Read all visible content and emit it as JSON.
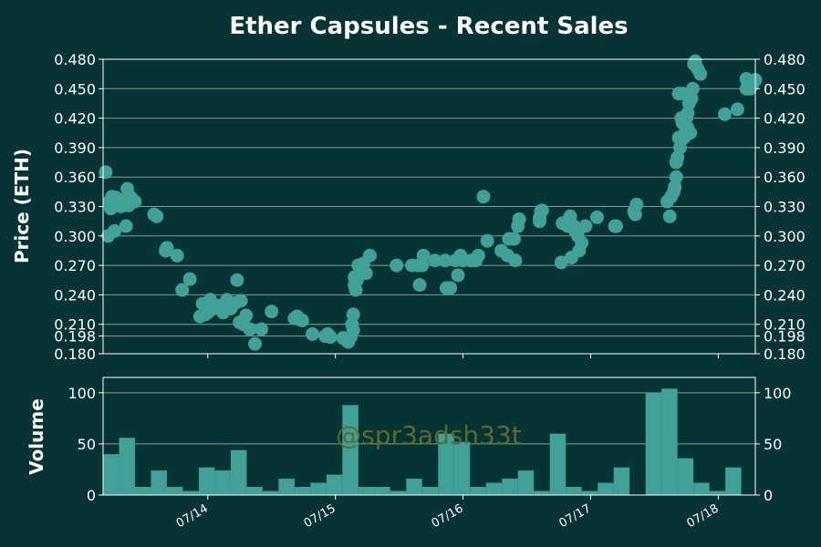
{
  "title": "Ether Capsules - Recent Sales",
  "watermark": "@spr3adsh33t",
  "colors": {
    "background": "#063333",
    "marker": "#41a097",
    "text": "#ffffff",
    "grid": "#8a9a98",
    "watermark": "#5b6b2d"
  },
  "chart_data": [
    {
      "type": "scatter",
      "ylabel": "Price (ETH)",
      "ylim": [
        0.18,
        0.48
      ],
      "yticks": [
        0.18,
        0.198,
        0.21,
        0.24,
        0.27,
        0.3,
        0.33,
        0.36,
        0.39,
        0.42,
        0.45,
        0.48
      ],
      "ytick_labels": [
        "0.180",
        "0.198",
        "0.210",
        "0.240",
        "0.270",
        "0.300",
        "0.330",
        "0.360",
        "0.390",
        "0.420",
        "0.450",
        "0.480"
      ],
      "grid": true,
      "x_unit": "days from 07/14 00:00",
      "xlim": [
        -0.82,
        4.29
      ],
      "points": [
        [
          -0.8,
          0.365
        ],
        [
          -0.78,
          0.3
        ],
        [
          -0.77,
          0.335
        ],
        [
          -0.76,
          0.328
        ],
        [
          -0.75,
          0.34
        ],
        [
          -0.73,
          0.305
        ],
        [
          -0.72,
          0.339
        ],
        [
          -0.7,
          0.336
        ],
        [
          -0.68,
          0.33
        ],
        [
          -0.66,
          0.337
        ],
        [
          -0.64,
          0.31
        ],
        [
          -0.63,
          0.348
        ],
        [
          -0.62,
          0.331
        ],
        [
          -0.6,
          0.339
        ],
        [
          -0.57,
          0.335
        ],
        [
          -0.42,
          0.322
        ],
        [
          -0.4,
          0.32
        ],
        [
          -0.33,
          0.285
        ],
        [
          -0.32,
          0.288
        ],
        [
          -0.24,
          0.28
        ],
        [
          -0.2,
          0.245
        ],
        [
          -0.14,
          0.256
        ],
        [
          -0.06,
          0.218
        ],
        [
          -0.04,
          0.231
        ],
        [
          -0.02,
          0.22
        ],
        [
          0.0,
          0.222
        ],
        [
          0.02,
          0.235
        ],
        [
          0.03,
          0.225
        ],
        [
          0.08,
          0.229
        ],
        [
          0.12,
          0.222
        ],
        [
          0.14,
          0.228
        ],
        [
          0.15,
          0.235
        ],
        [
          0.18,
          0.226
        ],
        [
          0.22,
          0.232
        ],
        [
          0.23,
          0.255
        ],
        [
          0.25,
          0.212
        ],
        [
          0.26,
          0.234
        ],
        [
          0.28,
          0.21
        ],
        [
          0.3,
          0.219
        ],
        [
          0.33,
          0.205
        ],
        [
          0.37,
          0.19
        ],
        [
          0.42,
          0.205
        ],
        [
          0.5,
          0.223
        ],
        [
          0.68,
          0.216
        ],
        [
          0.7,
          0.218
        ],
        [
          0.72,
          0.215
        ],
        [
          0.74,
          0.214
        ],
        [
          0.82,
          0.2
        ],
        [
          0.92,
          0.198
        ],
        [
          0.94,
          0.2
        ],
        [
          0.96,
          0.197
        ],
        [
          1.06,
          0.196
        ],
        [
          1.08,
          0.195
        ],
        [
          1.1,
          0.192
        ],
        [
          1.12,
          0.197
        ],
        [
          1.13,
          0.21
        ],
        [
          1.14,
          0.22
        ],
        [
          1.14,
          0.204
        ],
        [
          1.15,
          0.25
        ],
        [
          1.15,
          0.258
        ],
        [
          1.16,
          0.245
        ],
        [
          1.17,
          0.255
        ],
        [
          1.18,
          0.27
        ],
        [
          1.2,
          0.265
        ],
        [
          1.22,
          0.272
        ],
        [
          1.24,
          0.262
        ],
        [
          1.27,
          0.28
        ],
        [
          1.48,
          0.27
        ],
        [
          1.6,
          0.27
        ],
        [
          1.65,
          0.27
        ],
        [
          1.66,
          0.25
        ],
        [
          1.68,
          0.27
        ],
        [
          1.69,
          0.28
        ],
        [
          1.78,
          0.275
        ],
        [
          1.86,
          0.275
        ],
        [
          1.87,
          0.247
        ],
        [
          1.9,
          0.247
        ],
        [
          1.94,
          0.275
        ],
        [
          1.96,
          0.26
        ],
        [
          1.98,
          0.28
        ],
        [
          2.0,
          0.275
        ],
        [
          2.06,
          0.275
        ],
        [
          2.1,
          0.275
        ],
        [
          2.12,
          0.28
        ],
        [
          2.16,
          0.34
        ],
        [
          2.19,
          0.295
        ],
        [
          2.3,
          0.285
        ],
        [
          2.35,
          0.28
        ],
        [
          2.36,
          0.297
        ],
        [
          2.4,
          0.297
        ],
        [
          2.41,
          0.275
        ],
        [
          2.43,
          0.31
        ],
        [
          2.44,
          0.317
        ],
        [
          2.6,
          0.315
        ],
        [
          2.6,
          0.318
        ],
        [
          2.61,
          0.325
        ],
        [
          2.62,
          0.326
        ],
        [
          2.77,
          0.273
        ],
        [
          2.78,
          0.313
        ],
        [
          2.82,
          0.31
        ],
        [
          2.84,
          0.32
        ],
        [
          2.85,
          0.278
        ],
        [
          2.87,
          0.31
        ],
        [
          2.88,
          0.305
        ],
        [
          2.9,
          0.3
        ],
        [
          2.91,
          0.285
        ],
        [
          2.93,
          0.293
        ],
        [
          2.96,
          0.31
        ],
        [
          3.05,
          0.319
        ],
        [
          3.19,
          0.31
        ],
        [
          3.2,
          0.31
        ],
        [
          3.34,
          0.325
        ],
        [
          3.35,
          0.322
        ],
        [
          3.36,
          0.332
        ],
        [
          3.6,
          0.335
        ],
        [
          3.62,
          0.32
        ],
        [
          3.63,
          0.34
        ],
        [
          3.65,
          0.345
        ],
        [
          3.66,
          0.35
        ],
        [
          3.67,
          0.36
        ],
        [
          3.67,
          0.375
        ],
        [
          3.68,
          0.38
        ],
        [
          3.69,
          0.4
        ],
        [
          3.69,
          0.445
        ],
        [
          3.7,
          0.39
        ],
        [
          3.71,
          0.42
        ],
        [
          3.72,
          0.415
        ],
        [
          3.72,
          0.445
        ],
        [
          3.73,
          0.4
        ],
        [
          3.74,
          0.405
        ],
        [
          3.75,
          0.42
        ],
        [
          3.76,
          0.41
        ],
        [
          3.76,
          0.425
        ],
        [
          3.77,
          0.435
        ],
        [
          3.78,
          0.405
        ],
        [
          3.79,
          0.44
        ],
        [
          3.8,
          0.45
        ],
        [
          3.81,
          0.475
        ],
        [
          3.82,
          0.478
        ],
        [
          3.84,
          0.47
        ],
        [
          3.86,
          0.465
        ],
        [
          4.05,
          0.424
        ],
        [
          4.15,
          0.429
        ],
        [
          4.22,
          0.46
        ],
        [
          4.22,
          0.45
        ],
        [
          4.25,
          0.45
        ],
        [
          4.27,
          0.455
        ],
        [
          4.29,
          0.459
        ]
      ]
    },
    {
      "type": "bar",
      "ylabel": "Volume",
      "ylim": [
        0,
        115
      ],
      "yticks": [
        0,
        50,
        100
      ],
      "ytick_labels": [
        "0",
        "50",
        "100"
      ],
      "grid": true,
      "x_unit": "days from 07/14 00:00",
      "xlim": [
        -0.82,
        4.29
      ],
      "bin_width": 0.125,
      "bins": [
        [
          -0.82,
          40
        ],
        [
          -0.695,
          56
        ],
        [
          -0.57,
          8
        ],
        [
          -0.445,
          24
        ],
        [
          -0.32,
          8
        ],
        [
          -0.195,
          4
        ],
        [
          -0.07,
          27
        ],
        [
          0.055,
          24
        ],
        [
          0.18,
          44
        ],
        [
          0.305,
          8
        ],
        [
          0.43,
          4
        ],
        [
          0.555,
          16
        ],
        [
          0.68,
          8
        ],
        [
          0.805,
          12
        ],
        [
          0.93,
          20
        ],
        [
          1.055,
          88
        ],
        [
          1.18,
          8
        ],
        [
          1.305,
          8
        ],
        [
          1.43,
          4
        ],
        [
          1.555,
          16
        ],
        [
          1.68,
          8
        ],
        [
          1.805,
          60
        ],
        [
          1.93,
          52
        ],
        [
          2.055,
          8
        ],
        [
          2.18,
          12
        ],
        [
          2.305,
          16
        ],
        [
          2.43,
          24
        ],
        [
          2.555,
          4
        ],
        [
          2.68,
          60
        ],
        [
          2.805,
          8
        ],
        [
          2.93,
          4
        ],
        [
          3.055,
          12
        ],
        [
          3.18,
          27
        ],
        [
          3.43,
          100
        ],
        [
          3.555,
          104
        ],
        [
          3.68,
          36
        ],
        [
          3.805,
          12
        ],
        [
          3.93,
          4
        ],
        [
          4.055,
          27
        ]
      ]
    }
  ],
  "x_axis": {
    "ticks": [
      0,
      1,
      2,
      3,
      4
    ],
    "tick_labels": [
      "07/14",
      "07/15",
      "07/16",
      "07/17",
      "07/18"
    ]
  }
}
